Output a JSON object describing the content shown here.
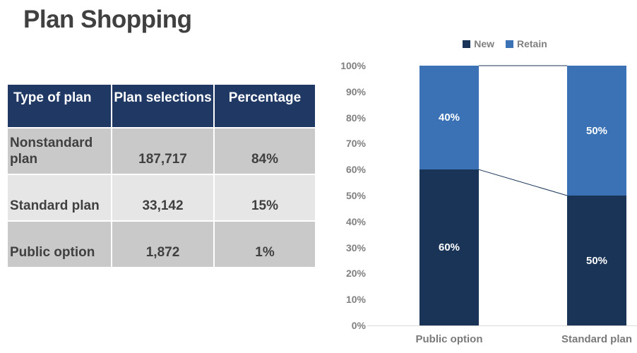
{
  "title": "Plan Shopping",
  "table": {
    "headers": [
      "Type of plan",
      "Plan selections",
      "Percentage"
    ],
    "rows": [
      {
        "type": "Nonstandard plan",
        "selections": "187,717",
        "percentage": "84%"
      },
      {
        "type": "Standard plan",
        "selections": "33,142",
        "percentage": "15%"
      },
      {
        "type": "Public option",
        "selections": "1,872",
        "percentage": "1%"
      }
    ]
  },
  "chart_data": {
    "type": "bar",
    "subtype": "stacked-100-percent-column",
    "categories": [
      "Public option",
      "Standard plan"
    ],
    "series": [
      {
        "name": "New",
        "values": [
          60,
          50
        ],
        "color": "#1A3457"
      },
      {
        "name": "Retain",
        "values": [
          40,
          50
        ],
        "color": "#3A72B5"
      }
    ],
    "data_labels": [
      [
        "60%",
        "40%"
      ],
      [
        "50%",
        "50%"
      ]
    ],
    "y_ticks": [
      "100%",
      "90%",
      "80%",
      "70%",
      "60%",
      "50%",
      "40%",
      "30%",
      "20%",
      "10%",
      "0%"
    ],
    "ylim": [
      0,
      100
    ],
    "grid": false,
    "legend_position": "top",
    "connector_line_color": "#1A3457",
    "axis_line_color": "#D9D9D9"
  },
  "colors": {
    "title_text": "#404040",
    "table_header_bg": "#203864",
    "table_header_text": "#ffffff",
    "table_row_dark": "#C9C9C9",
    "table_row_light": "#E7E6E6",
    "table_body_text": "#404040",
    "axis_label_text": "#808080"
  }
}
